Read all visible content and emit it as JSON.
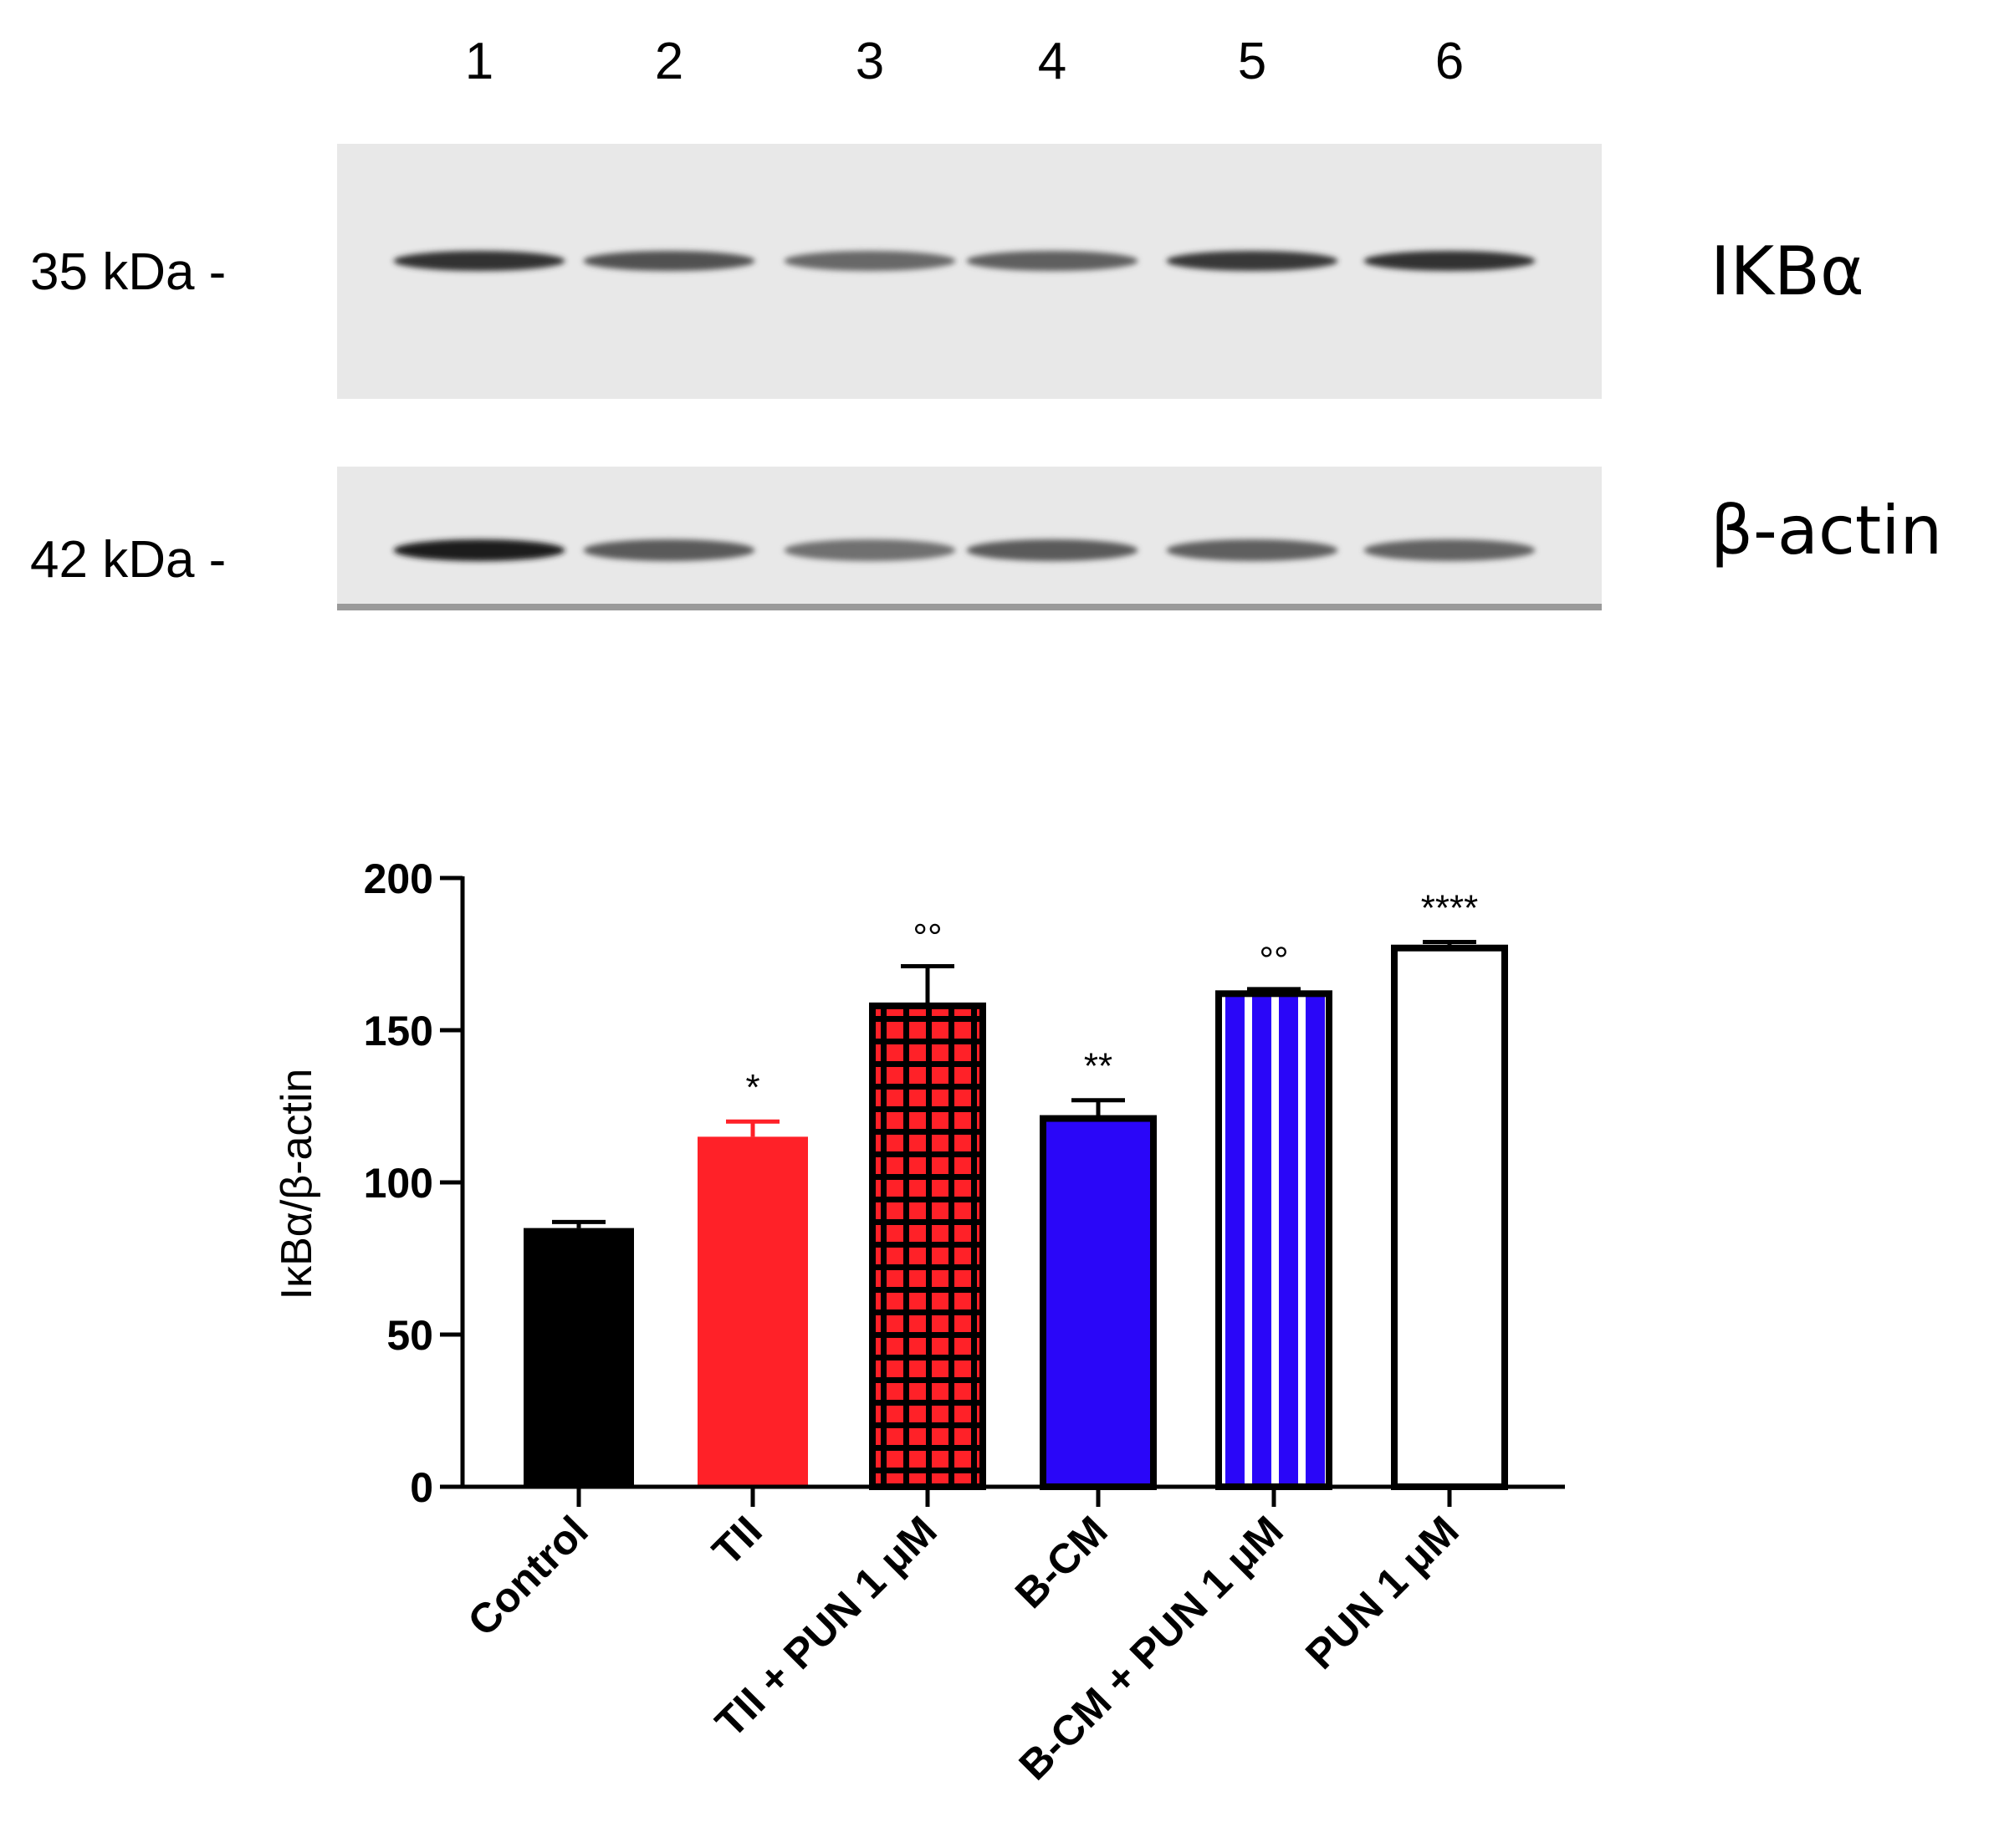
{
  "blot": {
    "lanes": [
      "1",
      "2",
      "3",
      "4",
      "5",
      "6"
    ],
    "panels": [
      {
        "protein": "IKBα",
        "mw_label": "35 kDa -",
        "band_intensity": [
          0.82,
          0.66,
          0.55,
          0.6,
          0.78,
          0.82
        ]
      },
      {
        "protein": "β-actin",
        "mw_label": "42 kDa -",
        "band_intensity": [
          0.92,
          0.62,
          0.52,
          0.62,
          0.6,
          0.58
        ]
      }
    ]
  },
  "chart_data": {
    "type": "bar",
    "categories": [
      "Control",
      "TII",
      "TII + PUN 1 μM",
      "B-CM",
      "B-CM + PUN 1 μM",
      "PUN 1 μM"
    ],
    "values": [
      85,
      115,
      158,
      121,
      162,
      177
    ],
    "errors": [
      2,
      5,
      13,
      6,
      1.5,
      2
    ],
    "annotations": [
      "",
      "*",
      "°°",
      "**",
      "°°",
      "****"
    ],
    "ylabel": "IκBα/β-actin",
    "ylim": [
      0,
      200
    ],
    "yticks": [
      0,
      50,
      100,
      150,
      200
    ],
    "bar_styles": [
      {
        "fill": "#000000",
        "pattern": "solid"
      },
      {
        "fill": "#ff2128",
        "pattern": "solid"
      },
      {
        "fill": "#ff2128",
        "pattern": "checker",
        "accent": "#000000"
      },
      {
        "fill": "#2a06f8",
        "pattern": "solid"
      },
      {
        "fill": "#2a06f8",
        "pattern": "vstripes",
        "accent": "#ffffff"
      },
      {
        "fill": "#ffffff",
        "pattern": "solid"
      }
    ],
    "error_colors": [
      "#000000",
      "#ff2128",
      "#000000",
      "#000000",
      "#000000",
      "#000000"
    ],
    "grid": false
  }
}
